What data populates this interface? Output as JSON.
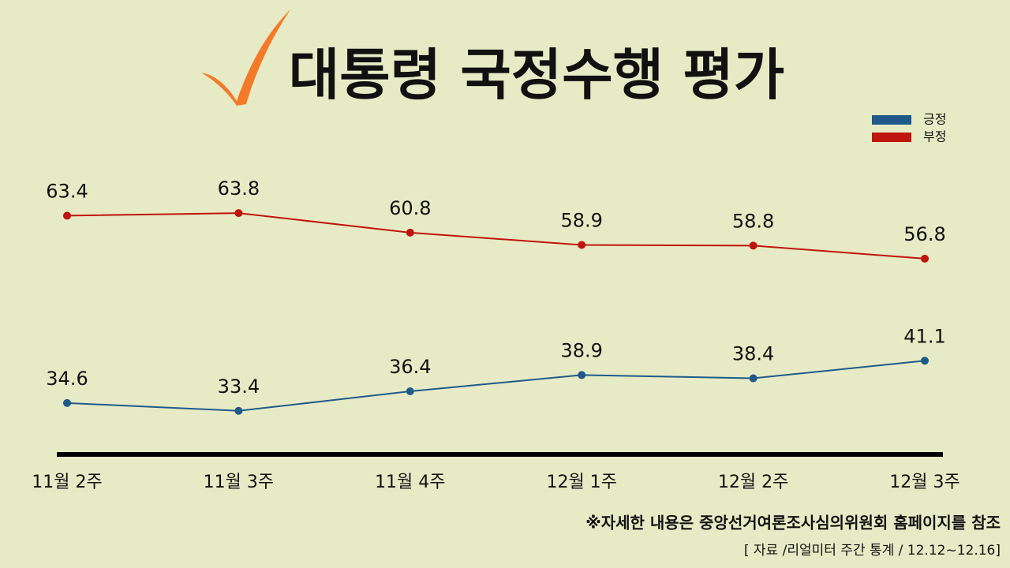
{
  "chart_data": {
    "type": "line",
    "title": "대통령 국정수행 평가",
    "categories": [
      "11월 2주",
      "11월 3주",
      "11월 4주",
      "12월 1주",
      "12월 2주",
      "12월 3주"
    ],
    "series": [
      {
        "name": "긍정",
        "color": "#1f5a8a",
        "values": [
          34.6,
          33.4,
          36.4,
          38.9,
          38.4,
          41.1
        ]
      },
      {
        "name": "부정",
        "color": "#c0140e",
        "values": [
          63.4,
          63.8,
          60.8,
          58.9,
          58.8,
          56.8
        ]
      }
    ],
    "ylim": [
      26.7,
      70
    ],
    "legend": "top-right",
    "note": "※자세한 내용은 중앙선거여론조사심의위원회 홈페이지를 참조",
    "source": "[ 자료 /리얼미터 주간 통계 / 12.12~12.16]"
  }
}
